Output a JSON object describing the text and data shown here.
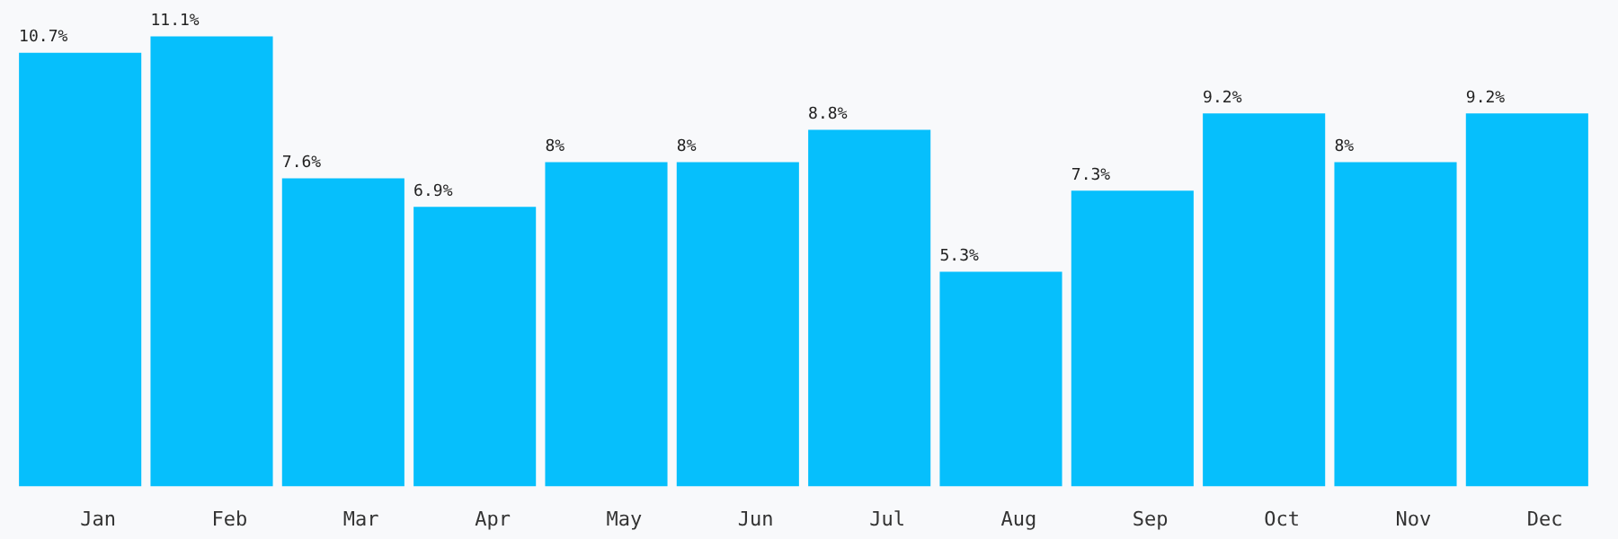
{
  "chart_data": {
    "type": "bar",
    "categories": [
      "Jan",
      "Feb",
      "Mar",
      "Apr",
      "May",
      "Jun",
      "Jul",
      "Aug",
      "Sep",
      "Oct",
      "Nov",
      "Dec"
    ],
    "values": [
      10.7,
      11.1,
      7.6,
      6.9,
      8,
      8,
      8.8,
      5.3,
      7.3,
      9.2,
      8,
      9.2
    ],
    "value_labels": [
      "10.7%",
      "11.1%",
      "7.6%",
      "6.9%",
      "8%",
      "8%",
      "8.8%",
      "5.3%",
      "7.3%",
      "9.2%",
      "8%",
      "9.2%"
    ],
    "color": "#06bffc",
    "grid": false,
    "legend": false
  }
}
